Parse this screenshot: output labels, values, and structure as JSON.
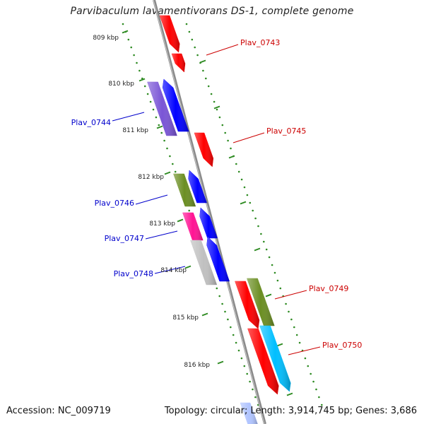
{
  "title": "Parvibaculum lavamentivorans DS-1, complete genome",
  "accession": "Accession: NC_009719",
  "summary": "Topology: circular; Length: 3,914,745 bp; Genes: 3,686",
  "colors": {
    "backbone": "#999999",
    "tick": "#2e8b22",
    "forward_label": "#cc0000",
    "reverse_label": "#0000cc"
  },
  "kbp_labels": [
    "809 kbp",
    "810 kbp",
    "811 kbp",
    "812 kbp",
    "813 kbp",
    "814 kbp",
    "815 kbp",
    "816 kbp"
  ],
  "gene_labels": [
    {
      "text": "Plav_0743",
      "strand": "forward"
    },
    {
      "text": "Plav_0744",
      "strand": "reverse"
    },
    {
      "text": "Plav_0745",
      "strand": "forward"
    },
    {
      "text": "Plav_0746",
      "strand": "reverse"
    },
    {
      "text": "Plav_0747",
      "strand": "reverse"
    },
    {
      "text": "Plav_0748",
      "strand": "reverse"
    },
    {
      "text": "Plav_0749",
      "strand": "forward"
    },
    {
      "text": "Plav_0750",
      "strand": "forward"
    }
  ],
  "features": [
    {
      "name": "fwd-cds-red",
      "color": "#ff0000"
    },
    {
      "name": "fwd-cds-red",
      "color": "#ff0000"
    },
    {
      "name": "rev-cds-purple",
      "color": "#7a55d6"
    },
    {
      "name": "rev-cds-blue",
      "color": "#0000ff"
    },
    {
      "name": "fwd-cds-red",
      "color": "#ff0000"
    },
    {
      "name": "rev-cds-olive",
      "color": "#6b8e23"
    },
    {
      "name": "rev-cds-blue",
      "color": "#0000ff"
    },
    {
      "name": "rev-cds-pink",
      "color": "#ff1493"
    },
    {
      "name": "rev-cds-blue",
      "color": "#0000ff"
    },
    {
      "name": "rev-cds-gray",
      "color": "#c0c0c0"
    },
    {
      "name": "rev-cds-blue",
      "color": "#0000ff"
    },
    {
      "name": "fwd-cds-red",
      "color": "#ff0000"
    },
    {
      "name": "fwd-cds-olive",
      "color": "#6b8e23"
    },
    {
      "name": "fwd-cds-red",
      "color": "#ff0000"
    },
    {
      "name": "fwd-cds-cyan",
      "color": "#00bfff"
    },
    {
      "name": "rev-cds-lightblue",
      "color": "#b0c4ff"
    }
  ]
}
